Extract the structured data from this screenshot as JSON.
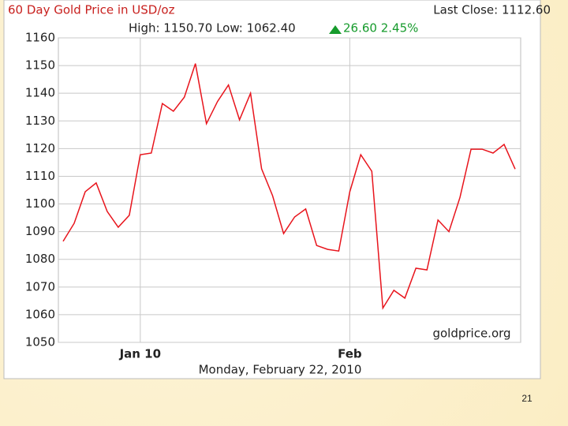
{
  "chart_data": {
    "type": "line",
    "title": "60 Day Gold Price in USD/oz",
    "last_close": "Last Close: 1112.60",
    "high_low": "High: 1150.70 Low: 1062.40",
    "change": "26.60 2.45%",
    "source": "goldprice.org",
    "xlabel": "Monday, February 22, 2010",
    "categories": [
      null,
      null,
      null,
      null,
      null,
      null,
      null,
      "Jan 10",
      null,
      null,
      null,
      null,
      null,
      null,
      null,
      null,
      null,
      null,
      null,
      null,
      null,
      null,
      null,
      null,
      null,
      null,
      "Feb",
      null,
      null,
      null,
      null,
      null,
      null,
      null,
      null,
      null,
      null,
      null,
      null,
      null,
      null,
      null
    ],
    "series": [
      {
        "name": "Gold Price",
        "color": "#e8141c",
        "values": [
          1086.5,
          1093,
          1104.4,
          1107.6,
          1097.3,
          1091.6,
          1095.9,
          1117.8,
          1118.4,
          1136.3,
          1133.5,
          1138.6,
          1150.7,
          1129,
          1137,
          1143,
          1130.4,
          1140,
          1112.7,
          1103,
          1089.3,
          1095.3,
          1098.2,
          1085,
          1083.6,
          1083,
          1104.4,
          1117.8,
          1111.8,
          1062.4,
          1068.8,
          1066,
          1076.8,
          1076.2,
          1094.2,
          1090,
          1102.4,
          1119.8,
          1119.8,
          1118.4,
          1121.5,
          1112.6
        ]
      }
    ],
    "ylim": [
      1050,
      1160
    ],
    "yticks": [
      1050,
      1060,
      1070,
      1080,
      1090,
      1100,
      1110,
      1120,
      1130,
      1140,
      1150,
      1160
    ],
    "grid": true
  },
  "slide_number": "21"
}
